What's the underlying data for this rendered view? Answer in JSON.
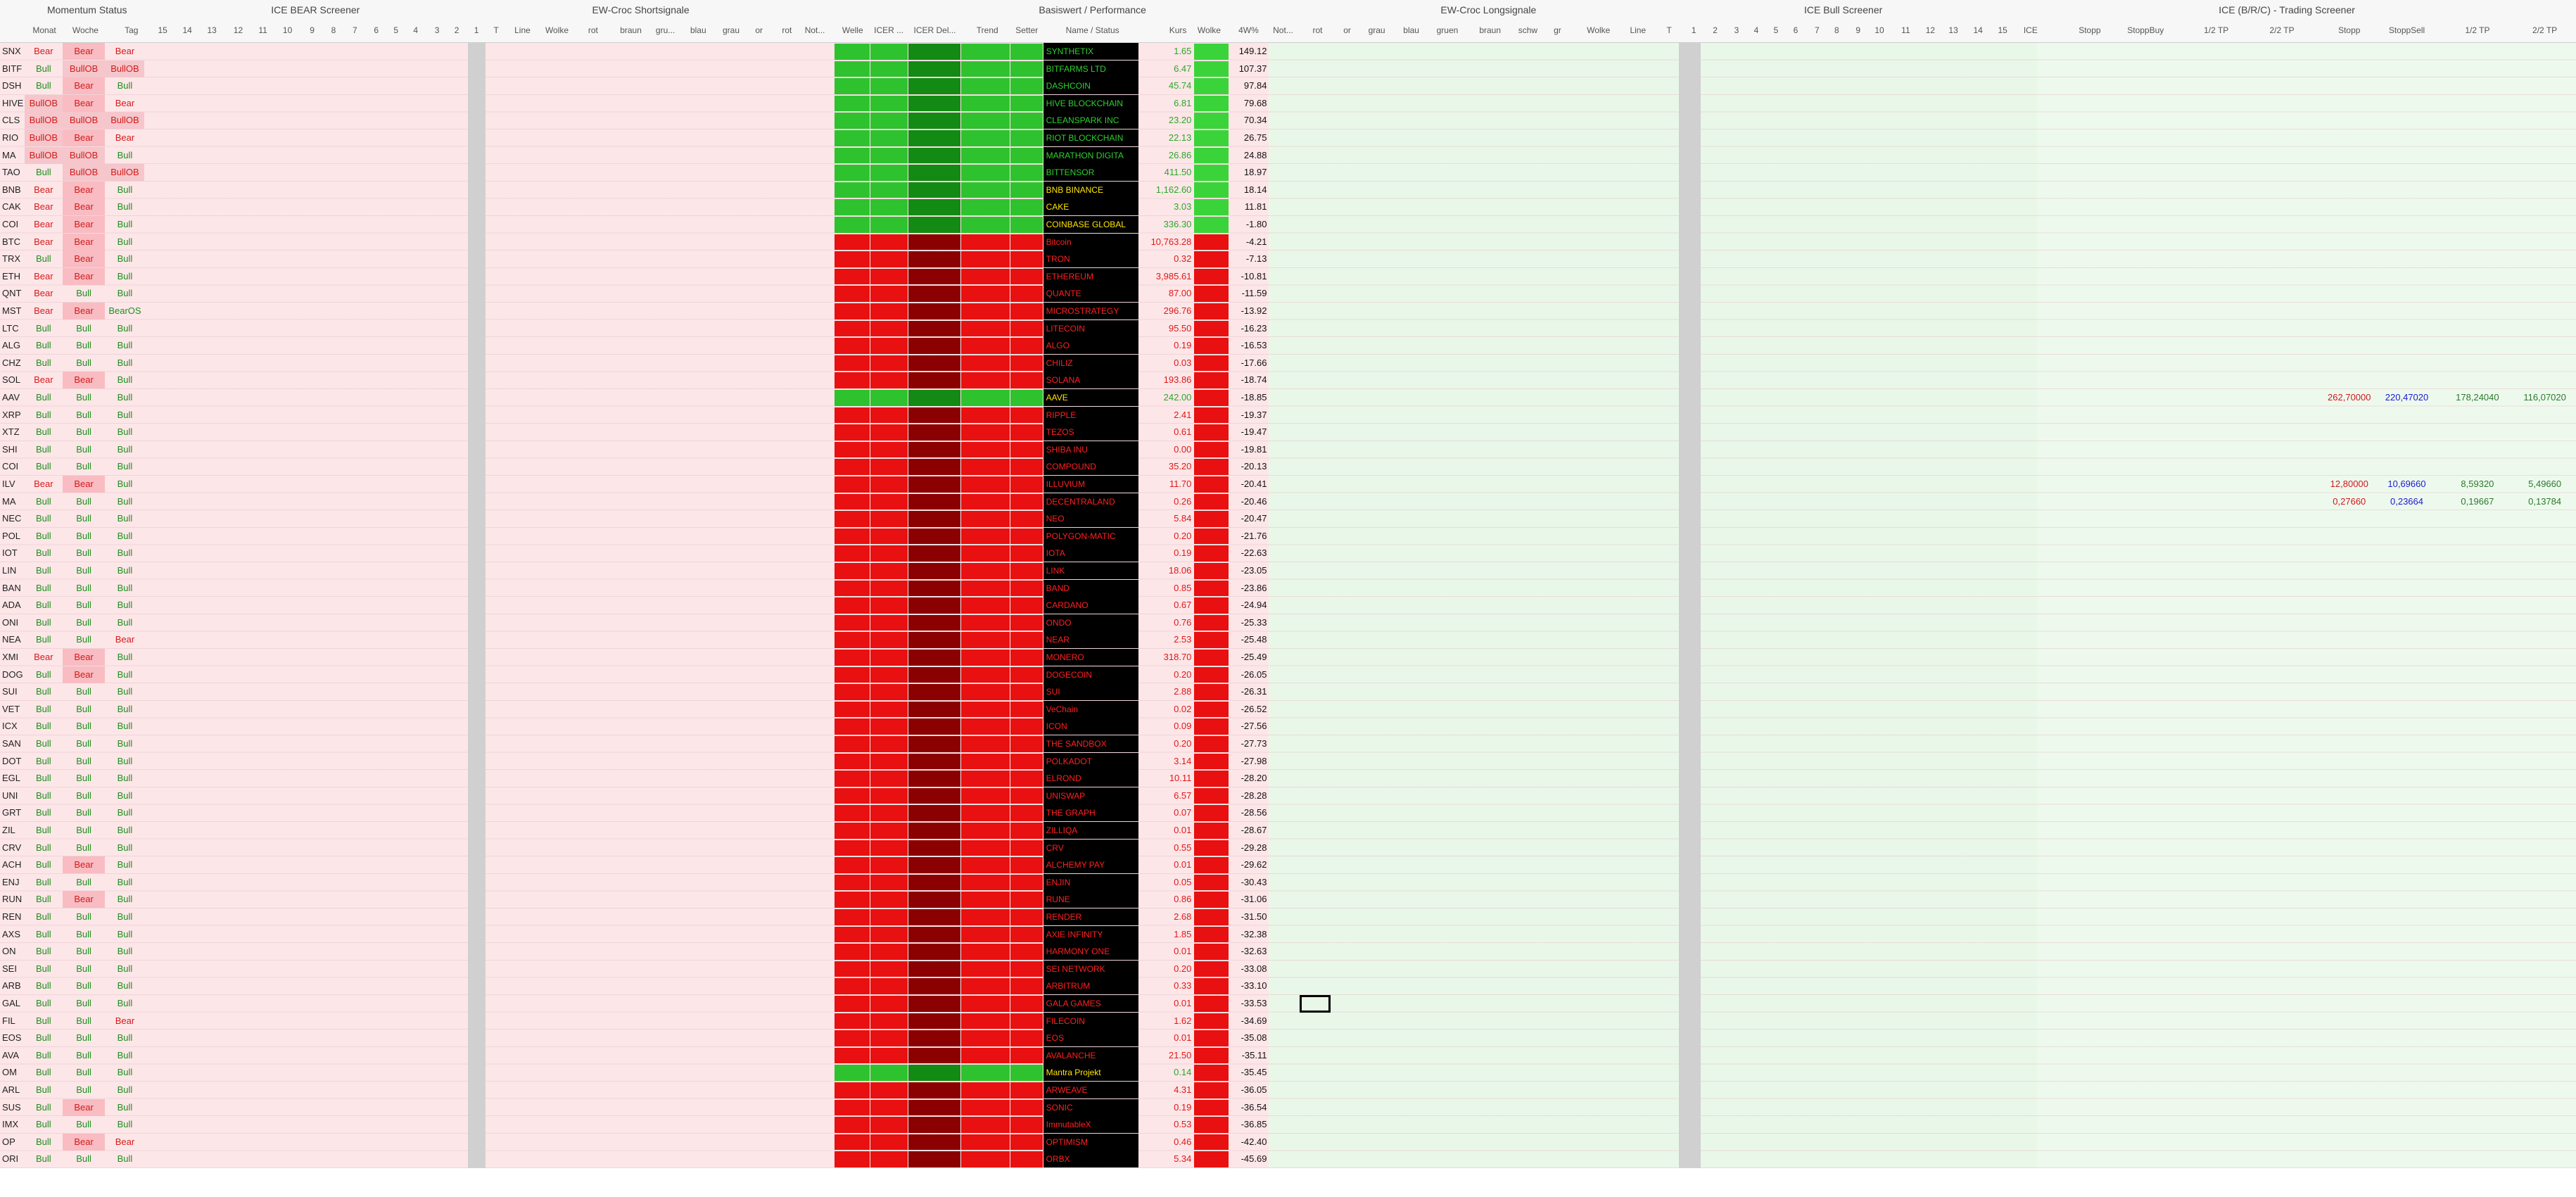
{
  "sections": [
    "Momentum Status",
    "ICE BEAR Screener",
    "EW-Croc Shortsignale",
    "Basiswert / Performance",
    "EW-Croc Longsignale",
    "ICE Bull Screener",
    "ICE (B/R/C) - Trading Screener"
  ],
  "column_headers": [
    "Monat",
    "Woche",
    "Tag",
    "15",
    "14",
    "13",
    "12",
    "11",
    "10",
    "9",
    "8",
    "7",
    "6",
    "5",
    "4",
    "3",
    "2",
    "1",
    "T",
    "Line",
    "Wolke",
    "rot",
    "braun",
    "gru...",
    "blau",
    "grau",
    "or",
    "rot",
    "Not...",
    "Welle",
    "ICER ...",
    "ICER Del...",
    "Trend",
    "Setter",
    "Name / Status",
    "Kurs",
    "Wolke",
    "4W%",
    "Not...",
    "rot",
    "or",
    "grau",
    "blau",
    "gruen",
    "braun",
    "schw",
    "gr",
    "Wolke",
    "Line",
    "T",
    "1",
    "2",
    "3",
    "4",
    "5",
    "6",
    "7",
    "8",
    "9",
    "10",
    "11",
    "12",
    "13",
    "14",
    "15",
    "ICE",
    "Stopp",
    "StoppBuy",
    "1/2 TP",
    "2/2 TP",
    "Stopp",
    "StoppSell",
    "1/2 TP",
    "2/2 TP"
  ],
  "rows": [
    {
      "sym": "SNX",
      "monat": "Bear",
      "woche": "Bear",
      "tag": "Bear",
      "name": "SYNTHETIX",
      "kurs": "1.65",
      "perf": "149.12",
      "color": "#2fd12f"
    },
    {
      "sym": "BITF",
      "monat": "Bull",
      "woche": "BullOB",
      "tag": "BullOB",
      "name": "BITFARMS LTD",
      "kurs": "6.47",
      "perf": "107.37",
      "color": "#2fd12f"
    },
    {
      "sym": "DSH",
      "monat": "Bull",
      "woche": "Bear",
      "tag": "Bull",
      "name": "DASHCOIN",
      "kurs": "45.74",
      "perf": "97.84",
      "color": "#2fd12f"
    },
    {
      "sym": "HIVE",
      "monat": "BullOB",
      "woche": "Bear",
      "tag": "Bear",
      "name": "HIVE BLOCKCHAIN",
      "kurs": "6.81",
      "perf": "79.68",
      "color": "#2fd12f"
    },
    {
      "sym": "CLS",
      "monat": "BullOB",
      "woche": "BullOB",
      "tag": "BullOB",
      "name": "CLEANSPARK INC",
      "kurs": "23.20",
      "perf": "70.34",
      "color": "#2fd12f"
    },
    {
      "sym": "RIO",
      "monat": "BullOB",
      "woche": "Bear",
      "tag": "Bear",
      "name": "RIOT BLOCKCHAIN",
      "kurs": "22.13",
      "perf": "26.75",
      "color": "#2fd12f"
    },
    {
      "sym": "MA",
      "monat": "BullOB",
      "woche": "BullOB",
      "tag": "Bull",
      "name": "MARATHON DIGITA",
      "kurs": "26.86",
      "perf": "24.88",
      "color": "#2fd12f"
    },
    {
      "sym": "TAO",
      "monat": "Bull",
      "woche": "BullOB",
      "tag": "BullOB",
      "name": "BITTENSOR",
      "kurs": "411.50",
      "perf": "18.97",
      "color": "#2fd12f"
    },
    {
      "sym": "BNB",
      "monat": "Bear",
      "woche": "Bear",
      "tag": "Bull",
      "name": "BNB BINANCE",
      "kurs": "1,162.60",
      "perf": "18.14",
      "color": "#ffe600"
    },
    {
      "sym": "CAK",
      "monat": "Bear",
      "woche": "Bear",
      "tag": "Bull",
      "name": "CAKE",
      "kurs": "3.03",
      "perf": "11.81",
      "color": "#ffe600"
    },
    {
      "sym": "COI",
      "monat": "Bear",
      "woche": "Bear",
      "tag": "Bull",
      "name": "COINBASE GLOBAL",
      "kurs": "336.30",
      "perf": "-1.80",
      "color": "#ffe600"
    },
    {
      "sym": "BTC",
      "monat": "Bear",
      "woche": "Bear",
      "tag": "Bull",
      "name": "Bitcoin",
      "kurs": "10,763.28",
      "perf": "-4.21",
      "color": "#ff2020"
    },
    {
      "sym": "TRX",
      "monat": "Bull",
      "woche": "Bear",
      "tag": "Bull",
      "name": "TRON",
      "kurs": "0.32",
      "perf": "-7.13",
      "color": "#ff2020"
    },
    {
      "sym": "ETH",
      "monat": "Bear",
      "woche": "Bear",
      "tag": "Bull",
      "name": "ETHEREUM",
      "kurs": "3,985.61",
      "perf": "-10.81",
      "color": "#ff2020"
    },
    {
      "sym": "QNT",
      "monat": "Bear",
      "woche": "Bull",
      "tag": "Bull",
      "name": "QUANTE",
      "kurs": "87.00",
      "perf": "-11.59",
      "color": "#ff2020"
    },
    {
      "sym": "MST",
      "monat": "Bear",
      "woche": "Bear",
      "tag": "BearOS",
      "name": "MICROSTRATEGY",
      "kurs": "296.76",
      "perf": "-13.92",
      "color": "#ff2020"
    },
    {
      "sym": "LTC",
      "monat": "Bull",
      "woche": "Bull",
      "tag": "Bull",
      "name": "LITECOIN",
      "kurs": "95.50",
      "perf": "-16.23",
      "color": "#ff2020"
    },
    {
      "sym": "ALG",
      "monat": "Bull",
      "woche": "Bull",
      "tag": "Bull",
      "name": "ALGO",
      "kurs": "0.19",
      "perf": "-16.53",
      "color": "#ff2020"
    },
    {
      "sym": "CHZ",
      "monat": "Bull",
      "woche": "Bull",
      "tag": "Bull",
      "name": "CHILIZ",
      "kurs": "0.03",
      "perf": "-17.66",
      "color": "#ff2020"
    },
    {
      "sym": "SOL",
      "monat": "Bear",
      "woche": "Bear",
      "tag": "Bull",
      "name": "SOLANA",
      "kurs": "193.86",
      "perf": "-18.74",
      "color": "#ff2020"
    },
    {
      "sym": "AAV",
      "monat": "Bull",
      "woche": "Bull",
      "tag": "Bull",
      "name": "AAVE",
      "kurs": "242.00",
      "perf": "-18.85",
      "color": "#ffe600"
    },
    {
      "sym": "XRP",
      "monat": "Bull",
      "woche": "Bull",
      "tag": "Bull",
      "name": "RIPPLE",
      "kurs": "2.41",
      "perf": "-19.37",
      "color": "#ff2020"
    },
    {
      "sym": "XTZ",
      "monat": "Bull",
      "woche": "Bull",
      "tag": "Bull",
      "name": "TEZOS",
      "kurs": "0.61",
      "perf": "-19.47",
      "color": "#ff2020"
    },
    {
      "sym": "SHI",
      "monat": "Bull",
      "woche": "Bull",
      "tag": "Bull",
      "name": "SHIBA INU",
      "kurs": "0.00",
      "perf": "-19.81",
      "color": "#ff2020"
    },
    {
      "sym": "COI",
      "monat": "Bull",
      "woche": "Bull",
      "tag": "Bull",
      "name": "COMPOUND",
      "kurs": "35.20",
      "perf": "-20.13",
      "color": "#ff2020"
    },
    {
      "sym": "ILV",
      "monat": "Bear",
      "woche": "Bear",
      "tag": "Bull",
      "name": "ILLUVIUM",
      "kurs": "11.70",
      "perf": "-20.41",
      "color": "#ff2020"
    },
    {
      "sym": "MA",
      "monat": "Bull",
      "woche": "Bull",
      "tag": "Bull",
      "name": "DECENTRALAND",
      "kurs": "0.26",
      "perf": "-20.46",
      "color": "#ff2020"
    },
    {
      "sym": "NEC",
      "monat": "Bull",
      "woche": "Bull",
      "tag": "Bull",
      "name": "NEO",
      "kurs": "5.84",
      "perf": "-20.47",
      "color": "#ff2020"
    },
    {
      "sym": "POL",
      "monat": "Bull",
      "woche": "Bull",
      "tag": "Bull",
      "name": "POLYGON-MATIC",
      "kurs": "0.20",
      "perf": "-21.76",
      "color": "#ff2020"
    },
    {
      "sym": "IOT",
      "monat": "Bull",
      "woche": "Bull",
      "tag": "Bull",
      "name": "IOTA",
      "kurs": "0.19",
      "perf": "-22.63",
      "color": "#ff2020"
    },
    {
      "sym": "LIN",
      "monat": "Bull",
      "woche": "Bull",
      "tag": "Bull",
      "name": "LINK",
      "kurs": "18.06",
      "perf": "-23.05",
      "color": "#ff2020"
    },
    {
      "sym": "BAN",
      "monat": "Bull",
      "woche": "Bull",
      "tag": "Bull",
      "name": "BAND",
      "kurs": "0.85",
      "perf": "-23.86",
      "color": "#ff2020"
    },
    {
      "sym": "ADA",
      "monat": "Bull",
      "woche": "Bull",
      "tag": "Bull",
      "name": "CARDANO",
      "kurs": "0.67",
      "perf": "-24.94",
      "color": "#ff2020"
    },
    {
      "sym": "ONI",
      "monat": "Bull",
      "woche": "Bull",
      "tag": "Bull",
      "name": "ONDO",
      "kurs": "0.76",
      "perf": "-25.33",
      "color": "#ff2020"
    },
    {
      "sym": "NEA",
      "monat": "Bull",
      "woche": "Bull",
      "tag": "Bear",
      "name": "NEAR",
      "kurs": "2.53",
      "perf": "-25.48",
      "color": "#ff2020"
    },
    {
      "sym": "XMI",
      "monat": "Bear",
      "woche": "Bear",
      "tag": "Bull",
      "name": "MONERO",
      "kurs": "318.70",
      "perf": "-25.49",
      "color": "#ff2020"
    },
    {
      "sym": "DOG",
      "monat": "Bull",
      "woche": "Bear",
      "tag": "Bull",
      "name": "DOGECOIN",
      "kurs": "0.20",
      "perf": "-26.05",
      "color": "#ff2020"
    },
    {
      "sym": "SUI",
      "monat": "Bull",
      "woche": "Bull",
      "tag": "Bull",
      "name": "SUI",
      "kurs": "2.88",
      "perf": "-26.31",
      "color": "#ff2020"
    },
    {
      "sym": "VET",
      "monat": "Bull",
      "woche": "Bull",
      "tag": "Bull",
      "name": "VeChain",
      "kurs": "0.02",
      "perf": "-26.52",
      "color": "#ff2020"
    },
    {
      "sym": "ICX",
      "monat": "Bull",
      "woche": "Bull",
      "tag": "Bull",
      "name": "ICON",
      "kurs": "0.09",
      "perf": "-27.56",
      "color": "#ff2020"
    },
    {
      "sym": "SAN",
      "monat": "Bull",
      "woche": "Bull",
      "tag": "Bull",
      "name": "THE SANDBOX",
      "kurs": "0.20",
      "perf": "-27.73",
      "color": "#ff2020"
    },
    {
      "sym": "DOT",
      "monat": "Bull",
      "woche": "Bull",
      "tag": "Bull",
      "name": "POLKADOT",
      "kurs": "3.14",
      "perf": "-27.98",
      "color": "#ff2020"
    },
    {
      "sym": "EGL",
      "monat": "Bull",
      "woche": "Bull",
      "tag": "Bull",
      "name": "ELROND",
      "kurs": "10.11",
      "perf": "-28.20",
      "color": "#ff2020"
    },
    {
      "sym": "UNI",
      "monat": "Bull",
      "woche": "Bull",
      "tag": "Bull",
      "name": "UNISWAP",
      "kurs": "6.57",
      "perf": "-28.28",
      "color": "#ff2020"
    },
    {
      "sym": "GRT",
      "monat": "Bull",
      "woche": "Bull",
      "tag": "Bull",
      "name": "THE GRAPH",
      "kurs": "0.07",
      "perf": "-28.56",
      "color": "#ff2020"
    },
    {
      "sym": "ZIL",
      "monat": "Bull",
      "woche": "Bull",
      "tag": "Bull",
      "name": "ZILLIQA",
      "kurs": "0.01",
      "perf": "-28.67",
      "color": "#ff2020"
    },
    {
      "sym": "CRV",
      "monat": "Bull",
      "woche": "Bull",
      "tag": "Bull",
      "name": "CRV",
      "kurs": "0.55",
      "perf": "-29.28",
      "color": "#ff2020"
    },
    {
      "sym": "ACH",
      "monat": "Bull",
      "woche": "Bear",
      "tag": "Bull",
      "name": "ALCHEMY PAY",
      "kurs": "0.01",
      "perf": "-29.62",
      "color": "#ff2020"
    },
    {
      "sym": "ENJ",
      "monat": "Bull",
      "woche": "Bull",
      "tag": "Bull",
      "name": "ENJIN",
      "kurs": "0.05",
      "perf": "-30.43",
      "color": "#ff2020"
    },
    {
      "sym": "RUN",
      "monat": "Bull",
      "woche": "Bear",
      "tag": "Bull",
      "name": "RUNE",
      "kurs": "0.86",
      "perf": "-31.06",
      "color": "#ff2020"
    },
    {
      "sym": "REN",
      "monat": "Bull",
      "woche": "Bull",
      "tag": "Bull",
      "name": "RENDER",
      "kurs": "2.68",
      "perf": "-31.50",
      "color": "#ff2020"
    },
    {
      "sym": "AXS",
      "monat": "Bull",
      "woche": "Bull",
      "tag": "Bull",
      "name": "AXIE INFINITY",
      "kurs": "1.85",
      "perf": "-32.38",
      "color": "#ff2020"
    },
    {
      "sym": "ON",
      "monat": "Bull",
      "woche": "Bull",
      "tag": "Bull",
      "name": "HARMONY ONE",
      "kurs": "0.01",
      "perf": "-32.63",
      "color": "#ff2020"
    },
    {
      "sym": "SEI",
      "monat": "Bull",
      "woche": "Bull",
      "tag": "Bull",
      "name": "SEI NETWORK",
      "kurs": "0.20",
      "perf": "-33.08",
      "color": "#ff2020"
    },
    {
      "sym": "ARB",
      "monat": "Bull",
      "woche": "Bull",
      "tag": "Bull",
      "name": "ARBITRUM",
      "kurs": "0.33",
      "perf": "-33.10",
      "color": "#ff2020"
    },
    {
      "sym": "GAL",
      "monat": "Bull",
      "woche": "Bull",
      "tag": "Bull",
      "name": "GALA GAMES",
      "kurs": "0.01",
      "perf": "-33.53",
      "color": "#ff2020"
    },
    {
      "sym": "FIL",
      "monat": "Bull",
      "woche": "Bull",
      "tag": "Bear",
      "name": "FILECOIN",
      "kurs": "1.62",
      "perf": "-34.69",
      "color": "#ff2020"
    },
    {
      "sym": "EOS",
      "monat": "Bull",
      "woche": "Bull",
      "tag": "Bull",
      "name": "EOS",
      "kurs": "0.01",
      "perf": "-35.08",
      "color": "#ff2020"
    },
    {
      "sym": "AVA",
      "monat": "Bull",
      "woche": "Bull",
      "tag": "Bull",
      "name": "AVALANCHE",
      "kurs": "21.50",
      "perf": "-35.11",
      "color": "#ff2020"
    },
    {
      "sym": "OM",
      "monat": "Bull",
      "woche": "Bull",
      "tag": "Bull",
      "name": "Mantra Projekt",
      "kurs": "0.14",
      "perf": "-35.45",
      "color": "#ffe600"
    },
    {
      "sym": "ARL",
      "monat": "Bull",
      "woche": "Bull",
      "tag": "Bull",
      "name": "ARWEAVE",
      "kurs": "4.31",
      "perf": "-36.05",
      "color": "#ff2020"
    },
    {
      "sym": "SUS",
      "monat": "Bull",
      "woche": "Bear",
      "tag": "Bull",
      "name": "SONIC",
      "kurs": "0.19",
      "perf": "-36.54",
      "color": "#ff2020"
    },
    {
      "sym": "IMX",
      "monat": "Bull",
      "woche": "Bull",
      "tag": "Bull",
      "name": "ImmutableX",
      "kurs": "0.53",
      "perf": "-36.85",
      "color": "#ff2020"
    },
    {
      "sym": "OP",
      "monat": "Bull",
      "woche": "Bear",
      "tag": "Bear",
      "name": "OPTIMISM",
      "kurs": "0.46",
      "perf": "-42.40",
      "color": "#ff2020"
    },
    {
      "sym": "ORI",
      "monat": "Bull",
      "woche": "Bull",
      "tag": "Bull",
      "name": "ORBX",
      "kurs": "5.34",
      "perf": "-45.69",
      "color": "#ff2020"
    }
  ],
  "trading": [
    {
      "row": "AAVE",
      "values": [
        "262,70000",
        "220,47020",
        "178,24040",
        "116,07020"
      ]
    },
    {
      "row": "ILLUVIUM",
      "values": [
        "12,80000",
        "10,69660",
        "8,59320",
        "5,49660"
      ]
    },
    {
      "row": "DECENTRALAND",
      "values": [
        "0,27660",
        "0,23664",
        "0,19667",
        "0,13784"
      ]
    }
  ]
}
